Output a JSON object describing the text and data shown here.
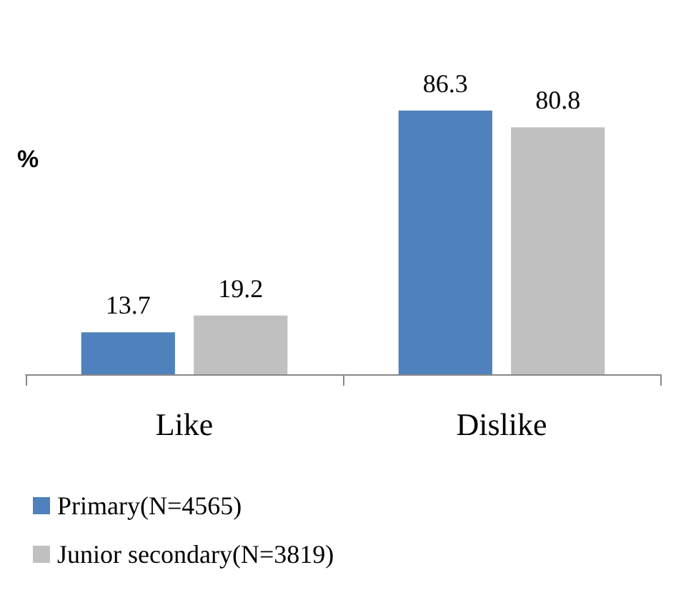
{
  "chart_data": {
    "type": "bar",
    "ylabel": "%",
    "categories": [
      "Like",
      "Dislike"
    ],
    "series": [
      {
        "name": "Primary(N=4565)",
        "color": "#4f81bd",
        "values": [
          13.7,
          86.3
        ]
      },
      {
        "name": "Junior secondary(N=3819)",
        "color": "#c0c0c0",
        "values": [
          19.2,
          80.8
        ]
      }
    ],
    "data_labels": true,
    "legend": "bottom",
    "grid": false,
    "tick_labels": "x"
  }
}
